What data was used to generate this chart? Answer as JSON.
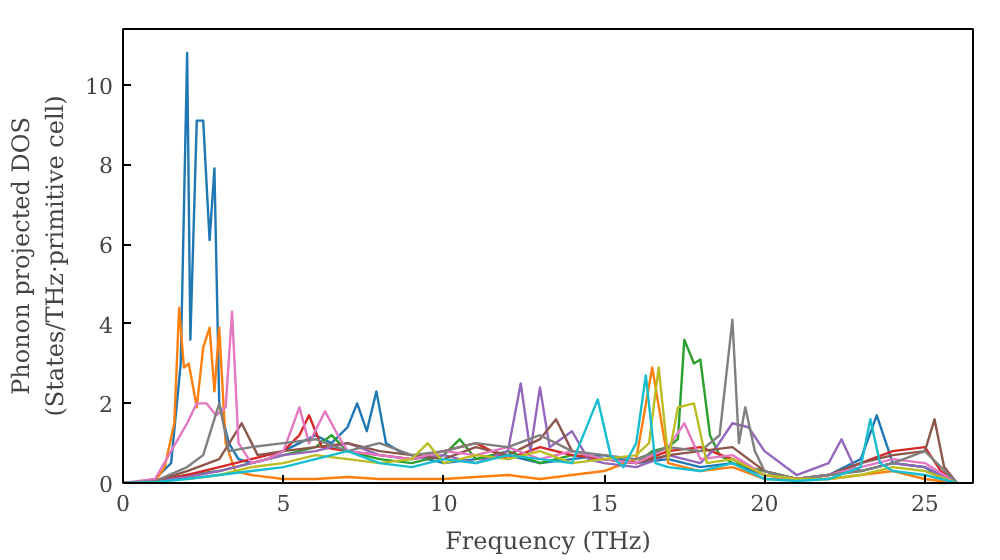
{
  "chart_data": {
    "type": "line",
    "xlabel": "Frequency (THz)",
    "ylabel": "Phonon projected DOS\n(States/THz·primitive cell)",
    "xlim": [
      0,
      26.5
    ],
    "ylim": [
      0,
      11.4
    ],
    "xticks": [
      0,
      5,
      10,
      15,
      20,
      25
    ],
    "yticks": [
      0,
      2,
      4,
      6,
      8,
      10
    ],
    "grid": false,
    "marker": "none",
    "line_style": "solid",
    "series": [
      {
        "color": "#1f77b4",
        "x": [
          0,
          0.5,
          1,
          1.5,
          1.8,
          2.0,
          2.1,
          2.3,
          2.5,
          2.7,
          2.85,
          3.0,
          3.3,
          3.6,
          4,
          4.5,
          5,
          5.5,
          6,
          6.5,
          7,
          7.3,
          7.6,
          7.9,
          8.2,
          8.6,
          9,
          10,
          11,
          12,
          13,
          14,
          15,
          16,
          17,
          18,
          19,
          20,
          21,
          22,
          23,
          23.5,
          24,
          25,
          25.5,
          26
        ],
        "values": [
          0,
          0.02,
          0.1,
          0.5,
          3,
          10.8,
          3.6,
          9.1,
          9.1,
          6.1,
          7.9,
          2.0,
          1.0,
          0.6,
          0.5,
          0.6,
          0.8,
          1.0,
          1.2,
          1.0,
          1.4,
          2.0,
          1.3,
          2.3,
          1.0,
          0.8,
          0.7,
          0.5,
          0.6,
          0.7,
          0.5,
          0.6,
          0.7,
          0.5,
          0.6,
          0.4,
          0.5,
          0.2,
          0.1,
          0.2,
          0.6,
          1.7,
          0.5,
          0.4,
          0.1,
          0
        ]
      },
      {
        "color": "#ff7f0e",
        "x": [
          0,
          0.5,
          1,
          1.3,
          1.6,
          1.75,
          1.9,
          2.05,
          2.3,
          2.5,
          2.7,
          2.85,
          3.0,
          3.2,
          3.5,
          4,
          5,
          6,
          7,
          8,
          9,
          10,
          11,
          12,
          13,
          14,
          15,
          16,
          16.5,
          17,
          18,
          19,
          20,
          21,
          22,
          23,
          24,
          25,
          26
        ],
        "values": [
          0,
          0,
          0.05,
          0.4,
          1.5,
          4.4,
          2.9,
          3.0,
          1.9,
          3.4,
          3.9,
          2.3,
          3.9,
          1.0,
          0.3,
          0.2,
          0.1,
          0.1,
          0.15,
          0.1,
          0.1,
          0.1,
          0.15,
          0.2,
          0.1,
          0.2,
          0.3,
          0.6,
          2.9,
          0.5,
          0.3,
          0.4,
          0.1,
          0.1,
          0.1,
          0.2,
          0.3,
          0.1,
          0
        ]
      },
      {
        "color": "#2ca02c",
        "x": [
          0,
          1,
          2,
          3,
          4,
          5,
          6,
          6.5,
          7,
          8,
          9,
          10,
          10.5,
          11,
          12,
          13,
          14,
          15,
          16,
          16.5,
          17,
          17.3,
          17.5,
          17.8,
          18,
          18.3,
          18.6,
          19,
          20,
          21,
          22,
          23,
          24,
          25,
          26
        ],
        "values": [
          0,
          0.05,
          0.2,
          0.3,
          0.5,
          0.7,
          0.9,
          1.2,
          0.8,
          0.6,
          0.5,
          0.7,
          1.1,
          0.6,
          0.8,
          0.5,
          0.7,
          0.6,
          0.5,
          0.8,
          0.9,
          1.1,
          3.6,
          3.0,
          3.1,
          1.2,
          0.7,
          0.5,
          0.3,
          0.1,
          0.2,
          0.3,
          0.5,
          0.4,
          0
        ]
      },
      {
        "color": "#d62728",
        "x": [
          0,
          1,
          2,
          3,
          4,
          5,
          5.5,
          5.8,
          6.2,
          7,
          8,
          9,
          10,
          11,
          12,
          13,
          14,
          15,
          16,
          17,
          18,
          19,
          20,
          21,
          22,
          23,
          24,
          25,
          25.5,
          26
        ],
        "values": [
          0,
          0.05,
          0.2,
          0.4,
          0.6,
          0.8,
          1.2,
          1.7,
          0.9,
          0.8,
          0.7,
          0.6,
          0.8,
          1.0,
          0.6,
          0.9,
          0.7,
          0.6,
          0.5,
          0.8,
          0.9,
          0.6,
          0.2,
          0.1,
          0.2,
          0.5,
          0.8,
          0.9,
          0.3,
          0
        ]
      },
      {
        "color": "#9467bd",
        "x": [
          0,
          1,
          2,
          3,
          4,
          5,
          6,
          7,
          8,
          9,
          10,
          11,
          12,
          12.4,
          12.7,
          13.0,
          13.3,
          14,
          14.5,
          15,
          16,
          17,
          18,
          18.5,
          19,
          19.5,
          20,
          21,
          22,
          22.4,
          22.8,
          23,
          24,
          25,
          26
        ],
        "values": [
          0,
          0.05,
          0.15,
          0.3,
          0.5,
          0.7,
          0.8,
          1.0,
          0.7,
          0.6,
          0.7,
          0.5,
          0.8,
          2.5,
          0.8,
          2.4,
          0.9,
          1.3,
          0.6,
          0.5,
          0.4,
          0.7,
          0.5,
          0.9,
          1.5,
          1.4,
          0.8,
          0.2,
          0.5,
          1.1,
          0.4,
          0.3,
          0.5,
          0.4,
          0
        ]
      },
      {
        "color": "#8c564b",
        "x": [
          0,
          1,
          2,
          3,
          3.7,
          4.2,
          5,
          6,
          7,
          8,
          9,
          10,
          11,
          12,
          13,
          13.5,
          14,
          15,
          16,
          17,
          18,
          19,
          20,
          21,
          22,
          23,
          24,
          25,
          25.3,
          25.6,
          26
        ],
        "values": [
          0,
          0.05,
          0.3,
          0.6,
          1.5,
          0.7,
          0.8,
          0.9,
          1.0,
          0.8,
          0.7,
          0.6,
          0.9,
          0.7,
          1.1,
          1.6,
          0.8,
          0.6,
          0.5,
          0.7,
          0.8,
          0.9,
          0.3,
          0.1,
          0.2,
          0.5,
          0.7,
          0.8,
          1.6,
          0.4,
          0
        ]
      },
      {
        "color": "#e377c2",
        "x": [
          0,
          1,
          1.5,
          2.0,
          2.3,
          2.6,
          2.9,
          3.2,
          3.4,
          3.6,
          4,
          4.5,
          5,
          5.5,
          5.8,
          6.3,
          6.7,
          7,
          8,
          9,
          10,
          11,
          12,
          13,
          14,
          15,
          16,
          17,
          17.5,
          18,
          19,
          20,
          21,
          22,
          23,
          24,
          25,
          26
        ],
        "values": [
          0,
          0.1,
          0.8,
          1.5,
          2.0,
          2.0,
          1.7,
          1.9,
          4.3,
          1.0,
          0.5,
          0.6,
          0.8,
          1.9,
          1.0,
          1.8,
          1.2,
          0.8,
          0.7,
          0.6,
          0.8,
          0.7,
          0.9,
          0.6,
          0.8,
          0.6,
          0.5,
          0.9,
          1.5,
          0.6,
          0.7,
          0.2,
          0.1,
          0.2,
          0.4,
          0.6,
          0.5,
          0
        ]
      },
      {
        "color": "#7f7f7f",
        "x": [
          0,
          1,
          2,
          2.5,
          3.0,
          3.3,
          4,
          5,
          6,
          7,
          8,
          9,
          10,
          11,
          12,
          13,
          14,
          15,
          16,
          17,
          18,
          18.6,
          19.0,
          19.2,
          19.4,
          19.7,
          20,
          21,
          22,
          23,
          24,
          25,
          26
        ],
        "values": [
          0,
          0.05,
          0.4,
          0.7,
          2.0,
          0.8,
          0.9,
          1.0,
          1.1,
          0.8,
          1.0,
          0.7,
          0.8,
          1.0,
          0.9,
          1.2,
          0.8,
          0.7,
          0.6,
          0.9,
          0.8,
          1.2,
          4.1,
          1.0,
          1.9,
          0.8,
          0.3,
          0.1,
          0.2,
          0.3,
          0.5,
          0.8,
          0
        ]
      },
      {
        "color": "#bcbd22",
        "x": [
          2,
          3,
          4,
          5,
          6,
          7,
          8,
          9,
          9.5,
          10,
          11,
          12,
          13,
          14,
          15,
          16,
          16.4,
          16.7,
          17.0,
          17.3,
          17.8,
          18.2,
          19,
          20,
          21,
          22,
          23,
          24,
          25,
          26
        ],
        "values": [
          0.1,
          0.2,
          0.4,
          0.5,
          0.7,
          0.6,
          0.5,
          0.6,
          1.0,
          0.5,
          0.7,
          0.6,
          0.8,
          0.5,
          0.6,
          0.7,
          1.0,
          2.9,
          0.6,
          1.9,
          2.0,
          0.5,
          0.6,
          0.2,
          0.1,
          0.1,
          0.2,
          0.4,
          0.3,
          0
        ]
      },
      {
        "color": "#17becf",
        "x": [
          0,
          1,
          2,
          3,
          4,
          5,
          6,
          7,
          8,
          9,
          10,
          11,
          12,
          13,
          14,
          14.8,
          15.2,
          15.6,
          16,
          16.3,
          16.6,
          17,
          18,
          19,
          20,
          21,
          22,
          23,
          23.3,
          23.6,
          24,
          25,
          26
        ],
        "values": [
          0,
          0.02,
          0.1,
          0.2,
          0.3,
          0.4,
          0.6,
          0.8,
          0.5,
          0.4,
          0.6,
          0.5,
          0.7,
          0.6,
          0.5,
          2.1,
          0.7,
          0.4,
          1.0,
          2.7,
          0.5,
          0.4,
          0.3,
          0.5,
          0.1,
          0.05,
          0.1,
          0.4,
          1.6,
          0.5,
          0.3,
          0.2,
          0
        ]
      }
    ]
  }
}
